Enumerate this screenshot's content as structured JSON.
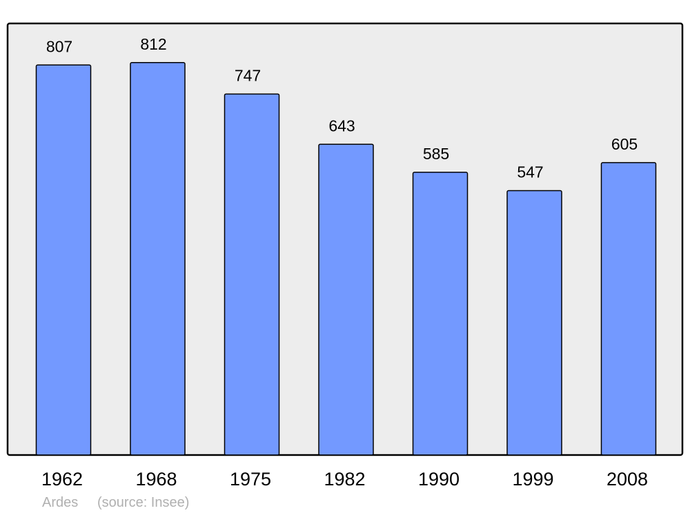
{
  "chart_data": {
    "type": "bar",
    "title": "",
    "xlabel": "",
    "ylabel": "",
    "categories": [
      "1962",
      "1968",
      "1975",
      "1982",
      "1990",
      "1999",
      "2008"
    ],
    "values": [
      807,
      812,
      747,
      643,
      585,
      547,
      605
    ],
    "ylim": [
      0,
      893
    ],
    "grid": false,
    "data_labels": true,
    "colors": {
      "bar": "#7399ff",
      "background": "#ededed",
      "frame": "#000000",
      "footer_text": "#b0b0b0"
    }
  },
  "footer": {
    "place": "Ardes",
    "source": "(source: Insee)"
  }
}
